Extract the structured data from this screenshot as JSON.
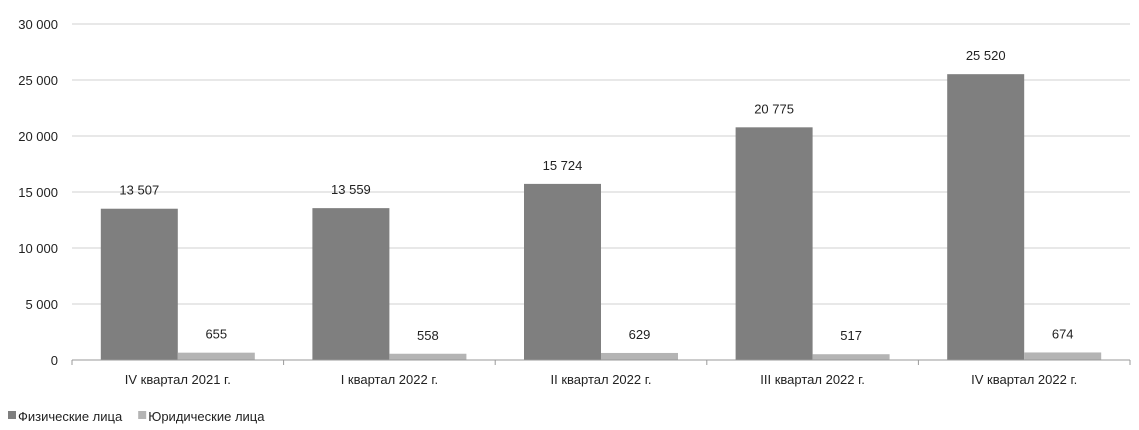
{
  "chart_data": {
    "type": "bar",
    "categories": [
      "IV квартал 2021 г.",
      "I квартал 2022 г.",
      "II квартал 2022 г.",
      "III квартал 2022 г.",
      "IV квартал 2022 г."
    ],
    "series": [
      {
        "name": "Физические лица",
        "color": "#7f7f7f",
        "values": [
          13507,
          13559,
          15724,
          20775,
          25520
        ],
        "labels": [
          "13 507",
          "13 559",
          "15 724",
          "20 775",
          "25 520"
        ]
      },
      {
        "name": "Юридические лица",
        "color": "#b4b4b4",
        "values": [
          655,
          558,
          629,
          517,
          674
        ],
        "labels": [
          "655",
          "558",
          "629",
          "517",
          "674"
        ]
      }
    ],
    "ylim": [
      0,
      30000
    ],
    "yticks": [
      0,
      5000,
      10000,
      15000,
      20000,
      25000,
      30000
    ],
    "ytick_labels": [
      "0",
      "5 000",
      "10 000",
      "15 000",
      "20 000",
      "25 000",
      "30 000"
    ],
    "grid": true,
    "legend_position": "bottom-left",
    "title": "",
    "xlabel": "",
    "ylabel": ""
  }
}
